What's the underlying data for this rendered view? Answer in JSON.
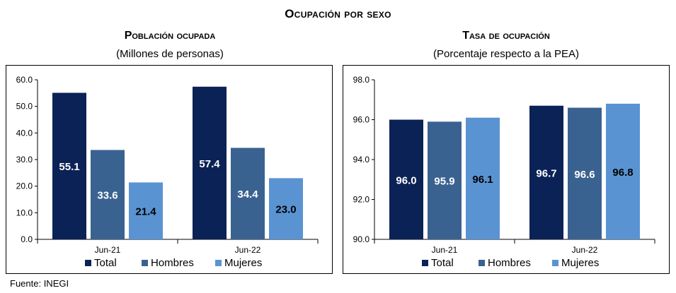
{
  "title": "Ocupación por sexo",
  "source": "Fuente: INEGI",
  "colors": {
    "total": "#0b2256",
    "hombres": "#3a6291",
    "mujeres": "#5a93d2"
  },
  "chart_data": [
    {
      "type": "bar",
      "title": "Población ocupada",
      "subtitle": "(Millones de personas)",
      "categories": [
        "Jun-21",
        "Jun-22"
      ],
      "series": [
        {
          "name": "Total",
          "values": [
            55.1,
            57.4
          ]
        },
        {
          "name": "Hombres",
          "values": [
            33.6,
            34.4
          ]
        },
        {
          "name": "Mujeres",
          "values": [
            21.4,
            23.0
          ]
        }
      ],
      "ylim": [
        0,
        60
      ],
      "yticks": [
        "0.0",
        "10.0",
        "20.0",
        "30.0",
        "40.0",
        "50.0",
        "60.0"
      ],
      "legend": "bottom"
    },
    {
      "type": "bar",
      "title": "Tasa de ocupación",
      "subtitle": "(Porcentaje respecto a la PEA)",
      "categories": [
        "Jun-21",
        "Jun-22"
      ],
      "series": [
        {
          "name": "Total",
          "values": [
            96.0,
            96.7
          ]
        },
        {
          "name": "Hombres",
          "values": [
            95.9,
            96.6
          ]
        },
        {
          "name": "Mujeres",
          "values": [
            96.1,
            96.8
          ]
        }
      ],
      "ylim": [
        90,
        98
      ],
      "yticks": [
        "90.0",
        "92.0",
        "94.0",
        "96.0",
        "98.0"
      ],
      "legend": "bottom"
    }
  ]
}
